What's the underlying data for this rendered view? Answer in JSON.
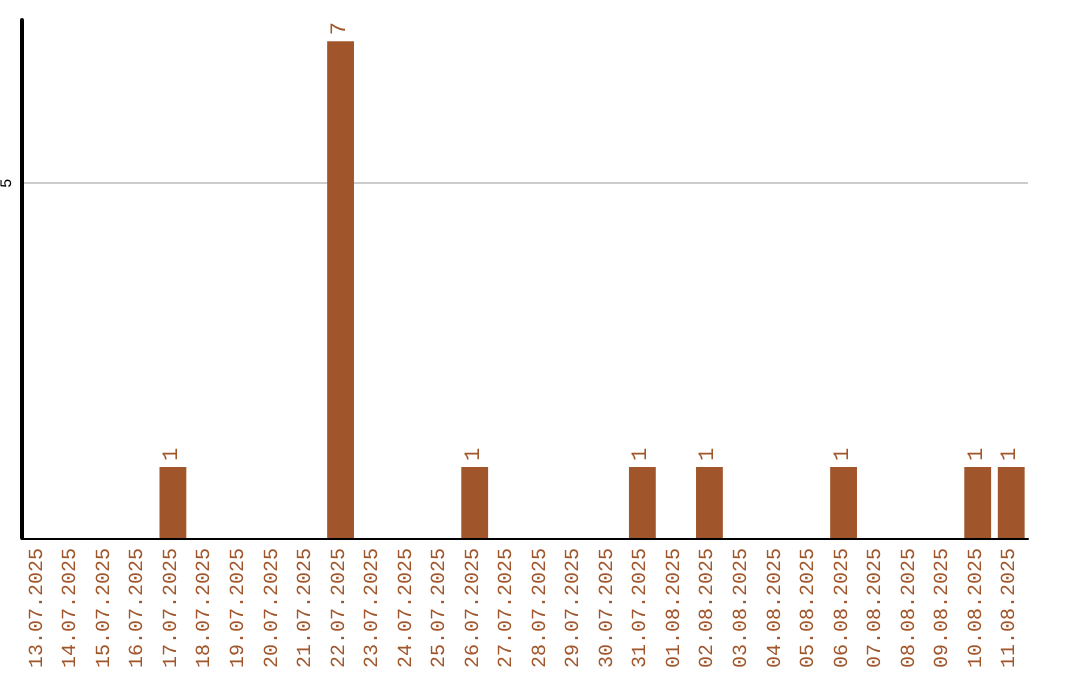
{
  "chart_data": {
    "type": "bar",
    "categories": [
      "13.07.2025",
      "14.07.2025",
      "15.07.2025",
      "16.07.2025",
      "17.07.2025",
      "18.07.2025",
      "19.07.2025",
      "20.07.2025",
      "21.07.2025",
      "22.07.2025",
      "23.07.2025",
      "24.07.2025",
      "25.07.2025",
      "26.07.2025",
      "27.07.2025",
      "28.07.2025",
      "29.07.2025",
      "30.07.2025",
      "31.07.2025",
      "01.08.2025",
      "02.08.2025",
      "03.08.2025",
      "04.08.2025",
      "05.08.2025",
      "06.08.2025",
      "07.08.2025",
      "08.08.2025",
      "09.08.2025",
      "10.08.2025",
      "11.08.2025"
    ],
    "values": [
      0,
      0,
      0,
      0,
      1,
      0,
      0,
      0,
      0,
      7,
      0,
      0,
      0,
      1,
      0,
      0,
      0,
      0,
      1,
      0,
      1,
      0,
      0,
      0,
      1,
      0,
      0,
      0,
      1,
      1
    ],
    "value_labels": [
      null,
      null,
      null,
      null,
      "1",
      null,
      null,
      null,
      null,
      "7",
      null,
      null,
      null,
      "1",
      null,
      null,
      null,
      null,
      "1",
      null,
      "1",
      null,
      null,
      null,
      "1",
      null,
      null,
      null,
      "1",
      "1"
    ],
    "color": "#a0562a",
    "ylim": [
      0,
      7.3
    ],
    "yticks": [
      5
    ],
    "grid": "y"
  }
}
